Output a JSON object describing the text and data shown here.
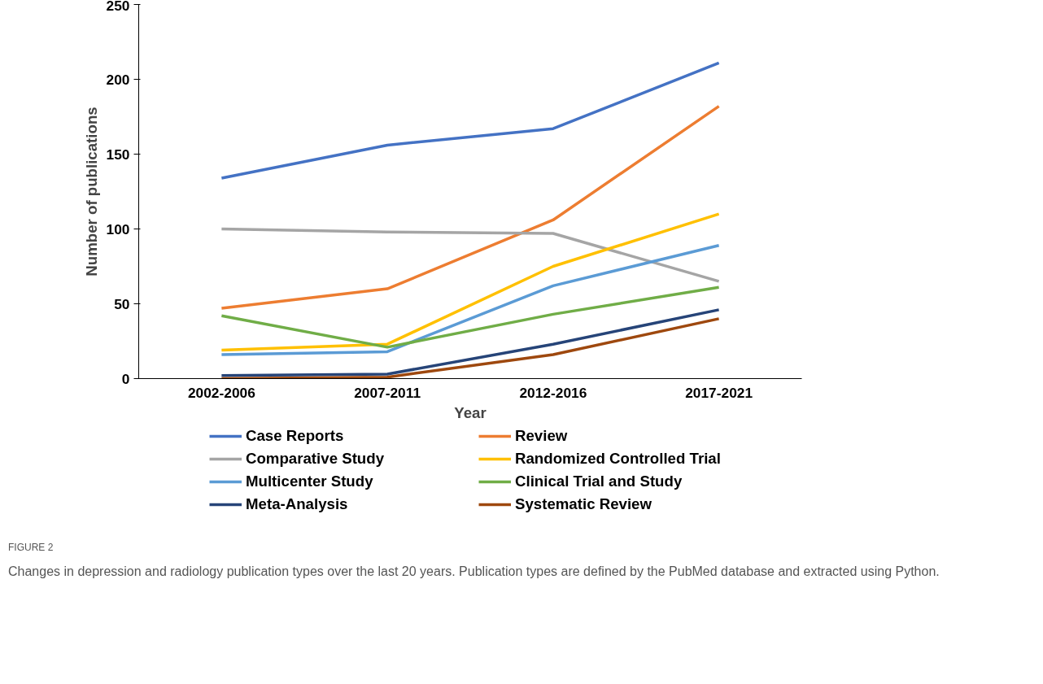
{
  "chart_data": {
    "type": "line",
    "xlabel": "Year",
    "ylabel": "Number of publications",
    "categories": [
      "2002-2006",
      "2007-2011",
      "2012-2016",
      "2017-2021"
    ],
    "series": [
      {
        "name": "Case Reports",
        "color": "#4472c4",
        "values": [
          134,
          156,
          167,
          211
        ]
      },
      {
        "name": "Review",
        "color": "#ed7d31",
        "values": [
          47,
          60,
          106,
          182
        ]
      },
      {
        "name": "Comparative Study",
        "color": "#a5a5a5",
        "values": [
          100,
          98,
          97,
          65
        ]
      },
      {
        "name": "Randomized Controlled Trial",
        "color": "#ffc000",
        "values": [
          19,
          23,
          75,
          110
        ]
      },
      {
        "name": "Multicenter Study",
        "color": "#5b9bd5",
        "values": [
          16,
          18,
          62,
          89
        ]
      },
      {
        "name": "Clinical Trial and Study",
        "color": "#70ad47",
        "values": [
          42,
          21,
          43,
          61
        ]
      },
      {
        "name": "Meta-Analysis",
        "color": "#264478",
        "values": [
          2,
          3,
          23,
          46
        ]
      },
      {
        "name": "Systematic Review",
        "color": "#9e480e",
        "values": [
          0,
          1,
          16,
          40
        ]
      }
    ],
    "ylim": [
      0,
      250
    ],
    "yticks": [
      0,
      50,
      100,
      150,
      200,
      250
    ],
    "grid": false,
    "legend": "bottom",
    "marker": "none",
    "line_style": "solid",
    "annotations": [
      "FIGURE 2",
      "Changes in depression and radiology publication types over the last 20 years. Publication types are defined by the PubMed database and extracted using Python."
    ]
  }
}
